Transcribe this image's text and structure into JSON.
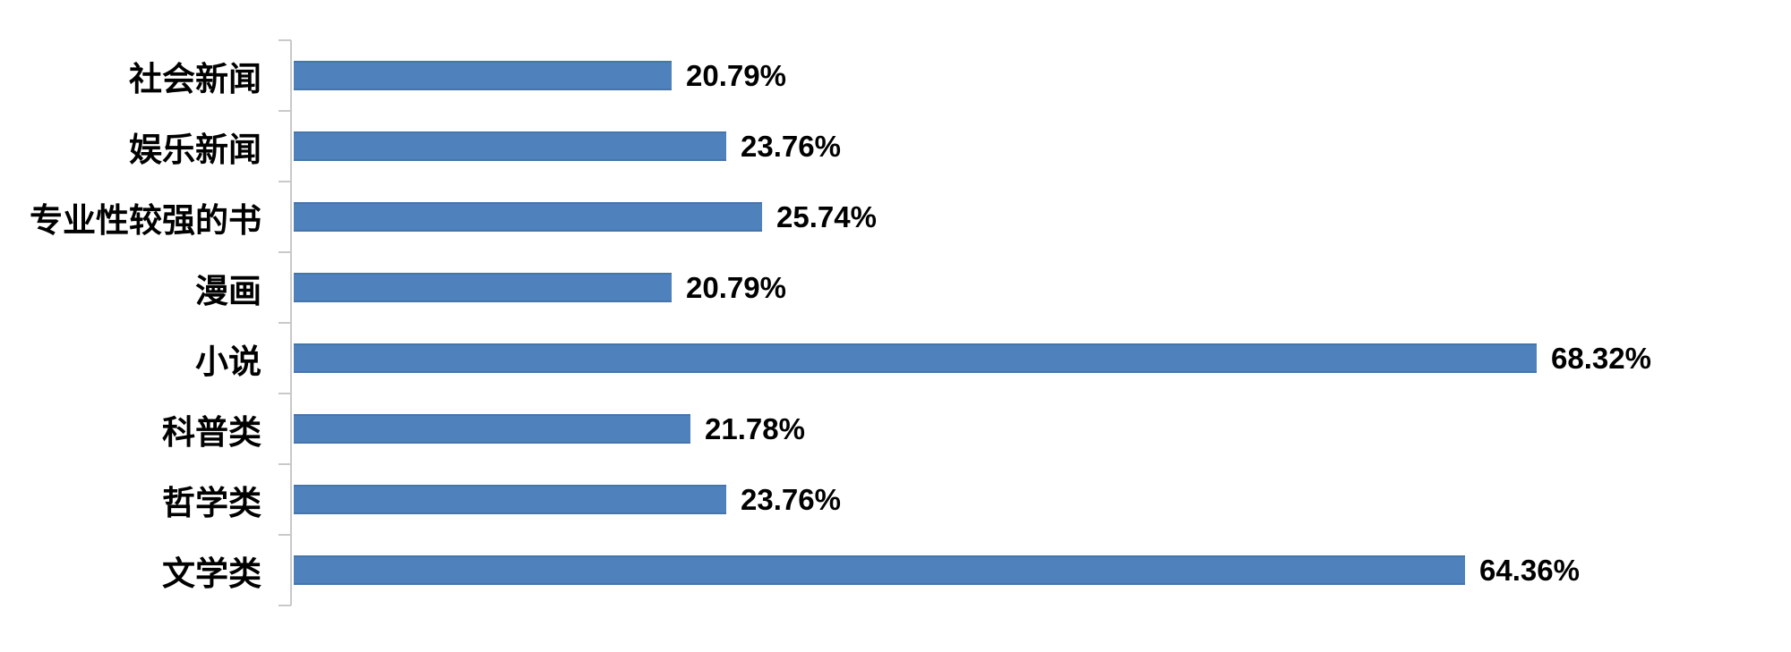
{
  "chart_data": {
    "type": "bar",
    "orientation": "horizontal",
    "title": "",
    "xlabel": "",
    "ylabel": "",
    "categories": [
      "社会新闻",
      "娱乐新闻",
      "专业性较强的书",
      "漫画",
      "小说",
      "科普类",
      "哲学类",
      "文学类"
    ],
    "values": [
      20.79,
      23.76,
      25.74,
      20.79,
      68.32,
      21.78,
      23.76,
      64.36
    ],
    "value_labels": [
      "20.79%",
      "23.76%",
      "25.74%",
      "20.79%",
      "68.32%",
      "21.78%",
      "23.76%",
      "64.36%"
    ],
    "xlim": [
      0,
      82
    ],
    "grid": false,
    "legend": "none",
    "data_labels": "outside-end",
    "bar_color": "#4F81BD",
    "bar_edge_color": "#4575A9",
    "axis_color": "#C9C9C9",
    "text_color": "#000000"
  }
}
